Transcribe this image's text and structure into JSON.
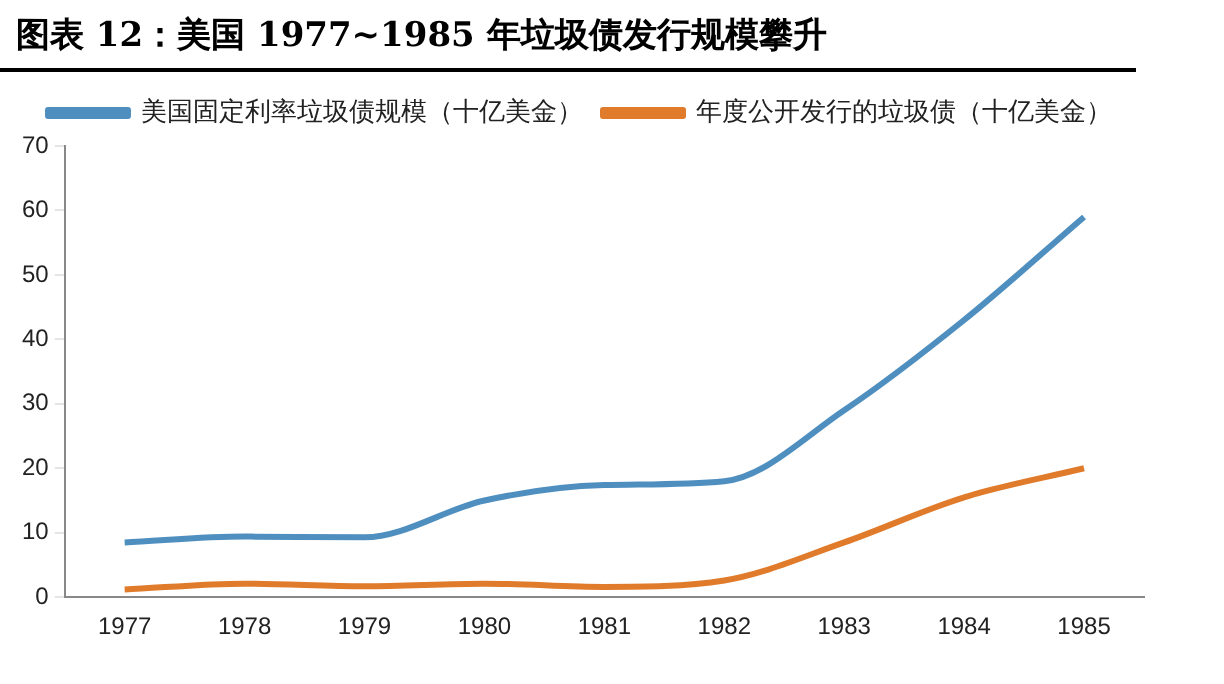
{
  "chart_data": {
    "type": "line",
    "title": "图表 12：美国 1977~1985 年垃圾债发行规模攀升",
    "categories": [
      "1977",
      "1978",
      "1979",
      "1980",
      "1981",
      "1982",
      "1983",
      "1984",
      "1985"
    ],
    "series": [
      {
        "name": "美国固定利率垃圾债规模（十亿美金）",
        "color": "#4f8fc0",
        "values": [
          8.5,
          9.4,
          9.3,
          15,
          17.4,
          18,
          29,
          43,
          59
        ]
      },
      {
        "name": "年度公开发行的垃圾债（十亿美金）",
        "color": "#e07b2c",
        "values": [
          1.2,
          2.1,
          1.7,
          2.1,
          1.6,
          2.6,
          8.5,
          15.5,
          20
        ]
      }
    ],
    "ylim": [
      0,
      70
    ],
    "yticks": [
      0,
      10,
      20,
      30,
      40,
      50,
      60,
      70
    ],
    "grid": false,
    "legend": "top",
    "marker": "none",
    "line_style": "solid"
  }
}
